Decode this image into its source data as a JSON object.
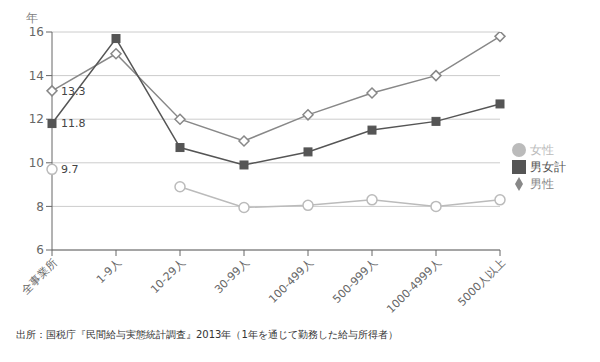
{
  "chart_data": {
    "type": "line",
    "categories": [
      "全事業所",
      "1-9人",
      "10-29人",
      "30-99人",
      "100-499人",
      "500-999人",
      "1000-4999人",
      "5000人以上"
    ],
    "series": [
      {
        "name": "男性",
        "color": "#888888",
        "marker": "diamond",
        "values": [
          13.3,
          15.0,
          12.0,
          11.0,
          12.2,
          13.2,
          14.0,
          15.8
        ]
      },
      {
        "name": "男女計",
        "color": "#555555",
        "marker": "square",
        "values": [
          11.8,
          15.7,
          10.7,
          9.9,
          10.5,
          11.5,
          11.9,
          12.7
        ]
      },
      {
        "name": "女性",
        "color": "#bbbbbb",
        "marker": "circle",
        "values": [
          9.7,
          null,
          8.9,
          7.95,
          8.05,
          8.3,
          8.0,
          8.3
        ]
      }
    ],
    "annotations": [
      {
        "series": "男性",
        "category": "全事業所",
        "label": "13.3"
      },
      {
        "series": "男女計",
        "category": "全事業所",
        "label": "11.8"
      },
      {
        "series": "女性",
        "category": "全事業所",
        "label": "9.7"
      }
    ],
    "ylabel": "年",
    "ylim": [
      6,
      16
    ],
    "yticks": [
      6,
      8,
      10,
      12,
      14,
      16
    ],
    "grid": true,
    "legend": "right",
    "caption": "出所：国税庁『民間給与実態統計調査』2013年（1年を通じて勤務した給与所得者）"
  }
}
